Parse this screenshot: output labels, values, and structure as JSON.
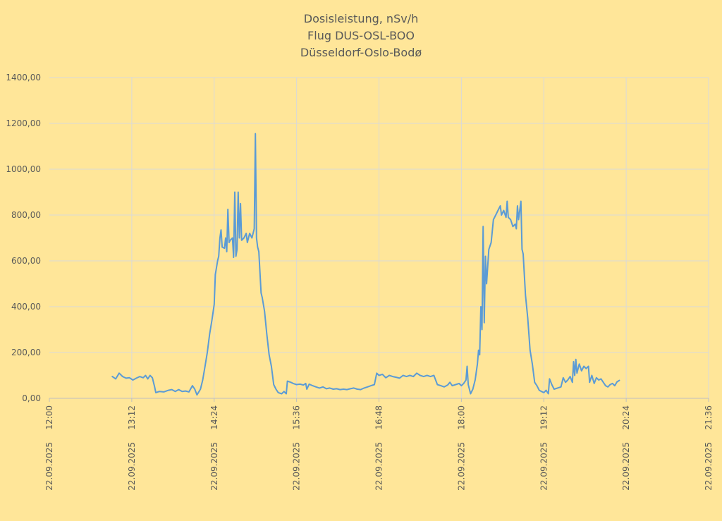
{
  "chart_data": {
    "type": "line",
    "title_lines": [
      "Dosisleistung, nSv/h",
      "Flug DUS-OSL-BOO",
      "Düsseldorf-Oslo-Bodø"
    ],
    "xlabel": "",
    "ylabel": "",
    "ylim": [
      0,
      1400
    ],
    "yticks": [
      "0,00",
      "200,00",
      "400,00",
      "600,00",
      "800,00",
      "1000,00",
      "1200,00",
      "1400,00"
    ],
    "xlim": [
      "12:00",
      "21:36"
    ],
    "xticks": [
      {
        "time": "12:00",
        "date": "22.09.2025"
      },
      {
        "time": "13:12",
        "date": "22.09.2025"
      },
      {
        "time": "14:24",
        "date": "22.09.2025"
      },
      {
        "time": "15:36",
        "date": "22.09.2025"
      },
      {
        "time": "16:48",
        "date": "22.09.2025"
      },
      {
        "time": "18:00",
        "date": "22.09.2025"
      },
      {
        "time": "19:12",
        "date": "22.09.2025"
      },
      {
        "time": "20:24",
        "date": "22.09.2025"
      },
      {
        "time": "21:36",
        "date": "22.09.2025"
      }
    ],
    "grid": true,
    "series_color": "#5B9BD5",
    "series": [
      {
        "name": "",
        "points": [
          [
            "12:55",
            95
          ],
          [
            "12:58",
            85
          ],
          [
            "13:01",
            110
          ],
          [
            "13:04",
            95
          ],
          [
            "13:07",
            88
          ],
          [
            "13:10",
            90
          ],
          [
            "13:13",
            80
          ],
          [
            "13:16",
            88
          ],
          [
            "13:19",
            95
          ],
          [
            "13:22",
            90
          ],
          [
            "13:24",
            100
          ],
          [
            "13:26",
            85
          ],
          [
            "13:28",
            100
          ],
          [
            "13:30",
            90
          ],
          [
            "13:32",
            50
          ],
          [
            "13:33",
            25
          ],
          [
            "13:36",
            30
          ],
          [
            "13:40",
            28
          ],
          [
            "13:44",
            35
          ],
          [
            "13:47",
            38
          ],
          [
            "13:50",
            30
          ],
          [
            "13:53",
            38
          ],
          [
            "13:56",
            30
          ],
          [
            "13:59",
            32
          ],
          [
            "14:02",
            28
          ],
          [
            "14:05",
            55
          ],
          [
            "14:07",
            40
          ],
          [
            "14:09",
            15
          ],
          [
            "14:12",
            40
          ],
          [
            "14:14",
            80
          ],
          [
            "14:16",
            140
          ],
          [
            "14:18",
            200
          ],
          [
            "14:20",
            280
          ],
          [
            "14:22",
            340
          ],
          [
            "14:24",
            410
          ],
          [
            "14:25",
            540
          ],
          [
            "14:27",
            600
          ],
          [
            "14:28",
            620
          ],
          [
            "14:29",
            700
          ],
          [
            "14:30",
            735
          ],
          [
            "14:31",
            660
          ],
          [
            "14:33",
            655
          ],
          [
            "14:34",
            700
          ],
          [
            "14:35",
            640
          ],
          [
            "14:36",
            825
          ],
          [
            "14:37",
            680
          ],
          [
            "14:38",
            690
          ],
          [
            "14:40",
            700
          ],
          [
            "14:41",
            615
          ],
          [
            "14:42",
            900
          ],
          [
            "14:43",
            620
          ],
          [
            "14:44",
            650
          ],
          [
            "14:45",
            900
          ],
          [
            "14:46",
            700
          ],
          [
            "14:47",
            850
          ],
          [
            "14:48",
            690
          ],
          [
            "14:50",
            700
          ],
          [
            "14:52",
            720
          ],
          [
            "14:53",
            680
          ],
          [
            "14:55",
            720
          ],
          [
            "14:57",
            700
          ],
          [
            "14:59",
            740
          ],
          [
            "15:00",
            1155
          ],
          [
            "15:01",
            700
          ],
          [
            "15:02",
            660
          ],
          [
            "15:03",
            640
          ],
          [
            "15:05",
            460
          ],
          [
            "15:06",
            440
          ],
          [
            "15:08",
            380
          ],
          [
            "15:10",
            280
          ],
          [
            "15:12",
            190
          ],
          [
            "15:14",
            140
          ],
          [
            "15:16",
            60
          ],
          [
            "15:18",
            40
          ],
          [
            "15:20",
            25
          ],
          [
            "15:23",
            20
          ],
          [
            "15:25",
            30
          ],
          [
            "15:27",
            20
          ],
          [
            "15:28",
            75
          ],
          [
            "15:31",
            70
          ],
          [
            "15:33",
            65
          ],
          [
            "15:36",
            60
          ],
          [
            "15:39",
            62
          ],
          [
            "15:42",
            58
          ],
          [
            "15:44",
            65
          ],
          [
            "15:45",
            40
          ],
          [
            "15:47",
            62
          ],
          [
            "15:50",
            55
          ],
          [
            "15:53",
            50
          ],
          [
            "15:56",
            45
          ],
          [
            "15:59",
            50
          ],
          [
            "16:02",
            42
          ],
          [
            "16:05",
            45
          ],
          [
            "16:08",
            40
          ],
          [
            "16:11",
            42
          ],
          [
            "16:14",
            38
          ],
          [
            "16:17",
            40
          ],
          [
            "16:20",
            38
          ],
          [
            "16:23",
            42
          ],
          [
            "16:26",
            45
          ],
          [
            "16:29",
            40
          ],
          [
            "16:32",
            38
          ],
          [
            "16:35",
            45
          ],
          [
            "16:38",
            50
          ],
          [
            "16:41",
            55
          ],
          [
            "16:44",
            60
          ],
          [
            "16:46",
            110
          ],
          [
            "16:48",
            100
          ],
          [
            "16:51",
            105
          ],
          [
            "16:54",
            90
          ],
          [
            "16:57",
            100
          ],
          [
            "17:00",
            95
          ],
          [
            "17:03",
            92
          ],
          [
            "17:06",
            88
          ],
          [
            "17:09",
            100
          ],
          [
            "17:12",
            95
          ],
          [
            "17:15",
            100
          ],
          [
            "17:18",
            95
          ],
          [
            "17:21",
            110
          ],
          [
            "17:24",
            100
          ],
          [
            "17:27",
            95
          ],
          [
            "17:30",
            100
          ],
          [
            "17:33",
            95
          ],
          [
            "17:36",
            100
          ],
          [
            "17:39",
            60
          ],
          [
            "17:42",
            55
          ],
          [
            "17:45",
            50
          ],
          [
            "17:48",
            58
          ],
          [
            "17:50",
            70
          ],
          [
            "17:52",
            55
          ],
          [
            "17:55",
            60
          ],
          [
            "17:58",
            65
          ],
          [
            "18:00",
            55
          ],
          [
            "18:02",
            65
          ],
          [
            "18:04",
            80
          ],
          [
            "18:05",
            140
          ],
          [
            "18:06",
            60
          ],
          [
            "18:08",
            20
          ],
          [
            "18:10",
            40
          ],
          [
            "18:12",
            80
          ],
          [
            "18:14",
            150
          ],
          [
            "18:15",
            210
          ],
          [
            "18:16",
            190
          ],
          [
            "18:17",
            400
          ],
          [
            "18:18",
            300
          ],
          [
            "18:19",
            750
          ],
          [
            "18:20",
            330
          ],
          [
            "18:21",
            620
          ],
          [
            "18:22",
            500
          ],
          [
            "18:24",
            650
          ],
          [
            "18:26",
            680
          ],
          [
            "18:28",
            780
          ],
          [
            "18:30",
            800
          ],
          [
            "18:32",
            820
          ],
          [
            "18:34",
            840
          ],
          [
            "18:35",
            800
          ],
          [
            "18:37",
            820
          ],
          [
            "18:39",
            790
          ],
          [
            "18:40",
            860
          ],
          [
            "18:41",
            790
          ],
          [
            "18:43",
            780
          ],
          [
            "18:45",
            750
          ],
          [
            "18:47",
            760
          ],
          [
            "18:48",
            740
          ],
          [
            "18:49",
            840
          ],
          [
            "18:50",
            780
          ],
          [
            "18:52",
            860
          ],
          [
            "18:53",
            650
          ],
          [
            "18:54",
            630
          ],
          [
            "18:56",
            450
          ],
          [
            "18:58",
            350
          ],
          [
            "19:00",
            210
          ],
          [
            "19:02",
            150
          ],
          [
            "19:04",
            70
          ],
          [
            "19:06",
            55
          ],
          [
            "19:08",
            35
          ],
          [
            "19:10",
            30
          ],
          [
            "19:12",
            25
          ],
          [
            "19:14",
            35
          ],
          [
            "19:16",
            20
          ],
          [
            "19:17",
            85
          ],
          [
            "19:19",
            60
          ],
          [
            "19:21",
            40
          ],
          [
            "19:24",
            45
          ],
          [
            "19:27",
            50
          ],
          [
            "19:29",
            90
          ],
          [
            "19:31",
            70
          ],
          [
            "19:33",
            80
          ],
          [
            "19:35",
            95
          ],
          [
            "19:37",
            70
          ],
          [
            "19:38",
            160
          ],
          [
            "19:39",
            100
          ],
          [
            "19:40",
            170
          ],
          [
            "19:41",
            110
          ],
          [
            "19:43",
            150
          ],
          [
            "19:45",
            120
          ],
          [
            "19:47",
            140
          ],
          [
            "19:49",
            130
          ],
          [
            "19:51",
            140
          ],
          [
            "19:52",
            70
          ],
          [
            "19:54",
            100
          ],
          [
            "19:56",
            65
          ],
          [
            "19:58",
            90
          ],
          [
            "20:00",
            80
          ],
          [
            "20:02",
            85
          ],
          [
            "20:04",
            70
          ],
          [
            "20:06",
            55
          ],
          [
            "20:08",
            50
          ],
          [
            "20:10",
            60
          ],
          [
            "20:12",
            65
          ],
          [
            "20:14",
            55
          ],
          [
            "20:16",
            72
          ],
          [
            "20:18",
            78
          ]
        ]
      }
    ]
  }
}
